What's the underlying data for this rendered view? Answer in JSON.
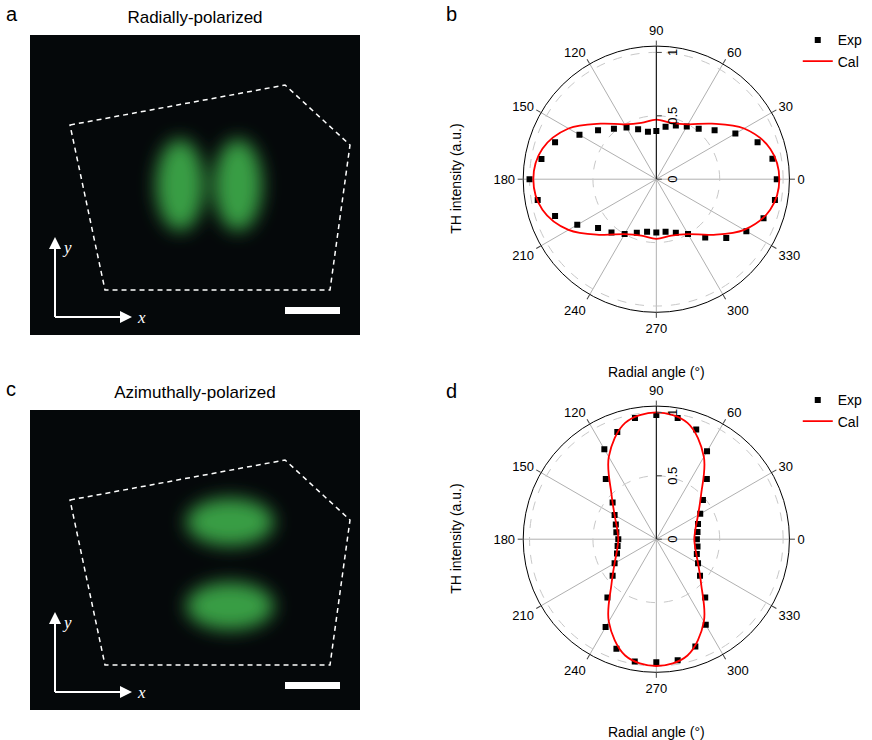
{
  "panels": [
    {
      "label": "a",
      "title": "Radially-polarized",
      "axes": [
        "x",
        "y"
      ]
    },
    {
      "label": "c",
      "title": "Azimuthally-polarized",
      "axes": [
        "x",
        "y"
      ]
    }
  ],
  "chart_data": [
    {
      "label": "b",
      "type": "polar",
      "y_title": "TH intensity (a.u.)",
      "x_title": "Radial angle (°)",
      "ylim": [
        0,
        1.05
      ],
      "yticks": [
        0,
        0.5,
        1
      ],
      "xticks": [
        0,
        30,
        60,
        90,
        120,
        150,
        180,
        210,
        240,
        270,
        300,
        330
      ],
      "grid": true,
      "legend": "top right",
      "series": [
        {
          "name": "Exp",
          "type": "scatter",
          "marker": "square",
          "color": "#000000",
          "x": [
            0,
            10,
            20,
            30,
            40,
            50,
            60,
            70,
            80,
            90,
            100,
            110,
            120,
            130,
            140,
            150,
            160,
            170,
            180,
            190,
            200,
            210,
            220,
            230,
            240,
            250,
            260,
            270,
            280,
            290,
            300,
            310,
            320,
            330,
            340,
            350
          ],
          "values": [
            0.95,
            0.93,
            0.85,
            0.72,
            0.6,
            0.52,
            0.48,
            0.45,
            0.42,
            0.38,
            0.38,
            0.42,
            0.47,
            0.52,
            0.6,
            0.7,
            0.85,
            0.92,
            1.0,
            0.95,
            0.85,
            0.72,
            0.6,
            0.55,
            0.5,
            0.45,
            0.42,
            0.42,
            0.42,
            0.45,
            0.5,
            0.6,
            0.72,
            0.82,
            0.9,
            0.95
          ]
        },
        {
          "name": "Cal",
          "type": "line",
          "line_style": "solid",
          "color": "#ff0000",
          "x": [
            0,
            15,
            30,
            45,
            60,
            75,
            90,
            105,
            120,
            135,
            150,
            165,
            180,
            195,
            210,
            225,
            240,
            255,
            270,
            285,
            300,
            315,
            330,
            345,
            360
          ],
          "values": [
            0.97,
            0.93,
            0.8,
            0.62,
            0.5,
            0.46,
            0.47,
            0.46,
            0.5,
            0.62,
            0.8,
            0.93,
            0.97,
            0.93,
            0.8,
            0.62,
            0.5,
            0.46,
            0.47,
            0.46,
            0.5,
            0.62,
            0.8,
            0.93,
            0.97
          ]
        }
      ]
    },
    {
      "label": "d",
      "type": "polar",
      "y_title": "TH intensity (a.u.)",
      "x_title": "Radial angle (°)",
      "ylim": [
        0,
        1.05
      ],
      "yticks": [
        0,
        0.5,
        1
      ],
      "xticks": [
        0,
        30,
        60,
        90,
        120,
        150,
        180,
        210,
        240,
        270,
        300,
        330
      ],
      "grid": true,
      "legend": "top right",
      "series": [
        {
          "name": "Exp",
          "type": "scatter",
          "marker": "square",
          "color": "#000000",
          "x": [
            0,
            10,
            20,
            30,
            40,
            50,
            60,
            70,
            80,
            90,
            100,
            110,
            120,
            130,
            140,
            150,
            160,
            170,
            180,
            190,
            200,
            210,
            220,
            230,
            240,
            250,
            260,
            270,
            280,
            290,
            300,
            310,
            320,
            330,
            340,
            350
          ],
          "values": [
            0.32,
            0.33,
            0.35,
            0.4,
            0.48,
            0.62,
            0.8,
            0.92,
            0.97,
            0.98,
            0.97,
            0.9,
            0.82,
            0.62,
            0.45,
            0.38,
            0.34,
            0.32,
            0.3,
            0.31,
            0.33,
            0.38,
            0.45,
            0.6,
            0.8,
            0.92,
            0.98,
            0.97,
            0.97,
            0.9,
            0.78,
            0.6,
            0.45,
            0.38,
            0.34,
            0.33
          ]
        },
        {
          "name": "Cal",
          "type": "line",
          "line_style": "solid",
          "color": "#ff0000",
          "x": [
            0,
            15,
            30,
            45,
            60,
            75,
            90,
            105,
            120,
            135,
            150,
            165,
            180,
            195,
            210,
            225,
            240,
            255,
            270,
            285,
            300,
            315,
            330,
            345,
            360
          ],
          "values": [
            0.3,
            0.32,
            0.38,
            0.5,
            0.75,
            0.95,
            1.0,
            0.95,
            0.75,
            0.5,
            0.38,
            0.32,
            0.3,
            0.32,
            0.38,
            0.5,
            0.75,
            0.95,
            1.0,
            0.95,
            0.75,
            0.5,
            0.38,
            0.32,
            0.3
          ]
        }
      ]
    }
  ]
}
